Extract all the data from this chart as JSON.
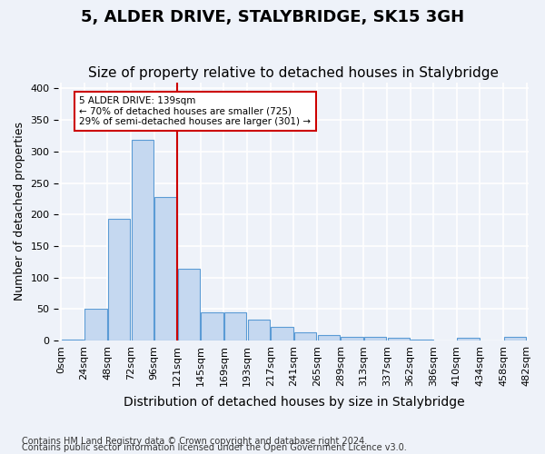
{
  "title": "5, ALDER DRIVE, STALYBRIDGE, SK15 3GH",
  "subtitle": "Size of property relative to detached houses in Stalybridge",
  "xlabel": "Distribution of detached houses by size in Stalybridge",
  "ylabel": "Number of detached properties",
  "bin_labels": [
    "0sqm",
    "24sqm",
    "48sqm",
    "72sqm",
    "96sqm",
    "121sqm",
    "145sqm",
    "169sqm",
    "193sqm",
    "217sqm",
    "241sqm",
    "265sqm",
    "289sqm",
    "313sqm",
    "337sqm",
    "362sqm",
    "386sqm",
    "410sqm",
    "434sqm",
    "458sqm",
    "482sqm"
  ],
  "bar_values": [
    2,
    51,
    193,
    318,
    228,
    114,
    45,
    45,
    33,
    21,
    13,
    8,
    5,
    5,
    4,
    2,
    0,
    4,
    0,
    5
  ],
  "bar_color": "#c5d8f0",
  "bar_edge_color": "#5b9bd5",
  "vline_x": 4.5,
  "vline_color": "#cc0000",
  "annotation_text": "5 ALDER DRIVE: 139sqm\n← 70% of detached houses are smaller (725)\n29% of semi-detached houses are larger (301) →",
  "annotation_box_color": "#ffffff",
  "annotation_box_edge": "#cc0000",
  "footnote1": "Contains HM Land Registry data © Crown copyright and database right 2024.",
  "footnote2": "Contains public sector information licensed under the Open Government Licence v3.0.",
  "ylim": [
    0,
    410
  ],
  "yticks": [
    0,
    50,
    100,
    150,
    200,
    250,
    300,
    350,
    400
  ],
  "background_color": "#eef2f9",
  "grid_color": "#ffffff",
  "title_fontsize": 13,
  "subtitle_fontsize": 11,
  "axis_fontsize": 9,
  "tick_fontsize": 8
}
